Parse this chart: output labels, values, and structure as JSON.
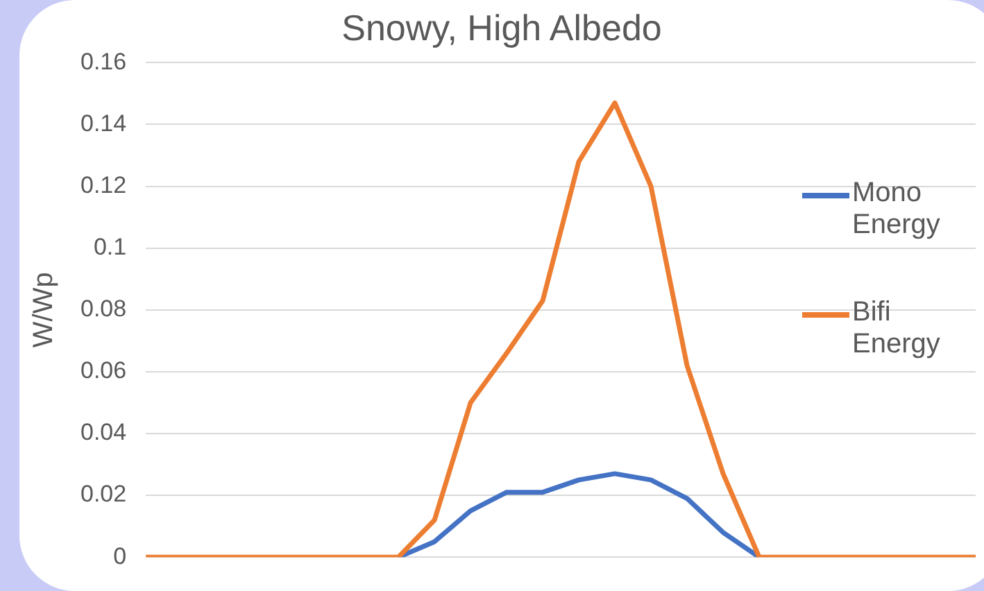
{
  "chart_data": {
    "type": "line",
    "title": "Snowy, High Albedo",
    "ylabel": "W/Wp",
    "categories": [
      null,
      null,
      null,
      null,
      null,
      null,
      null,
      null,
      null,
      null,
      null,
      null,
      null,
      null,
      null,
      null,
      null,
      null,
      null,
      null,
      null,
      null,
      null,
      null
    ],
    "series": [
      {
        "name": "Mono Energy",
        "color": "#4472c4",
        "values": [
          null,
          null,
          null,
          null,
          null,
          null,
          null,
          0,
          0.005,
          0.015,
          0.021,
          0.021,
          0.025,
          0.027,
          0.025,
          0.019,
          0.008,
          0,
          null,
          null,
          null,
          null,
          null,
          null
        ]
      },
      {
        "name": "Bifi Energy",
        "color": "#ed7d31",
        "values": [
          0,
          0,
          0,
          0,
          0,
          0,
          0,
          0,
          0.012,
          0.05,
          0.066,
          0.083,
          0.128,
          0.147,
          0.12,
          0.062,
          0.027,
          0,
          0,
          0,
          0,
          0,
          0,
          0
        ]
      }
    ],
    "ylim": [
      0,
      0.16
    ],
    "yticks": [
      0,
      0.02,
      0.04,
      0.06,
      0.08,
      0.1,
      0.12,
      0.14,
      0.16
    ],
    "grid": "y",
    "legend": "right",
    "marker": "none",
    "line_style": "solid"
  }
}
